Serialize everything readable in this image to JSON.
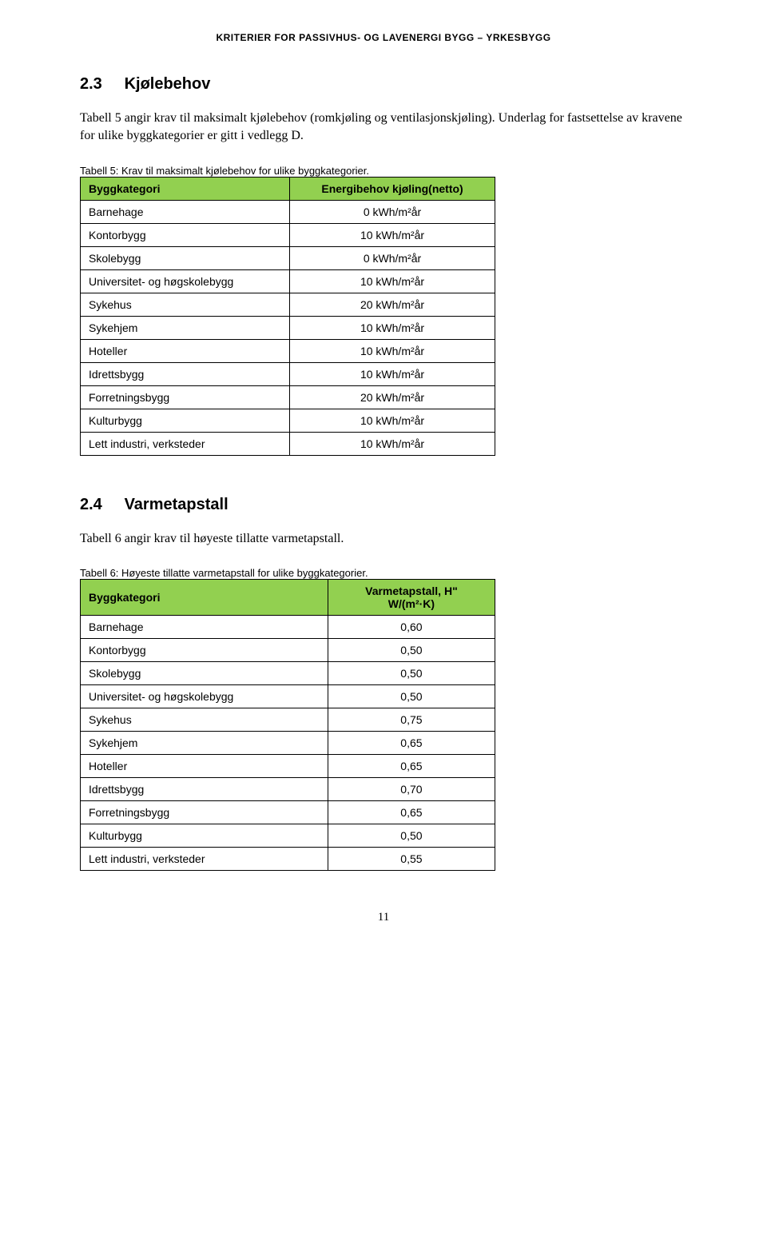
{
  "header": {
    "text": "KRITERIER FOR PASSIVHUS- OG LAVENERGI BYGG – YRKESBYGG"
  },
  "section1": {
    "number": "2.3",
    "title": "Kjølebehov",
    "body": "Tabell 5 angir krav til maksimalt kjølebehov (romkjøling og ventilasjonskjøling). Underlag for fastsettelse av kravene for ulike byggkategorier er gitt i vedlegg D."
  },
  "table5": {
    "caption": "Tabell 5: Krav til maksimalt kjølebehov for ulike byggkategorier.",
    "header_col1": "Byggkategori",
    "header_col2": "Energibehov kjøling(netto)",
    "header_bg": "#92d050",
    "rows": [
      {
        "name": "Barnehage",
        "value": "0 kWh/m²år"
      },
      {
        "name": "Kontorbygg",
        "value": "10 kWh/m²år"
      },
      {
        "name": "Skolebygg",
        "value": "0 kWh/m²år"
      },
      {
        "name": "Universitet- og høgskolebygg",
        "value": "10 kWh/m²år"
      },
      {
        "name": "Sykehus",
        "value": "20 kWh/m²år"
      },
      {
        "name": "Sykehjem",
        "value": "10 kWh/m²år"
      },
      {
        "name": "Hoteller",
        "value": "10 kWh/m²år"
      },
      {
        "name": "Idrettsbygg",
        "value": "10 kWh/m²år"
      },
      {
        "name": "Forretningsbygg",
        "value": "20 kWh/m²år"
      },
      {
        "name": "Kulturbygg",
        "value": "10 kWh/m²år"
      },
      {
        "name": "Lett industri, verksteder",
        "value": "10 kWh/m²år"
      }
    ]
  },
  "section2": {
    "number": "2.4",
    "title": "Varmetapstall",
    "body": "Tabell 6 angir krav til høyeste tillatte varmetapstall."
  },
  "table6": {
    "caption": "Tabell 6: Høyeste tillatte varmetapstall for ulike byggkategorier.",
    "header_col1": "Byggkategori",
    "header_col2_line1": "Varmetapstall, H\"",
    "header_col2_line2": "W/(m²·K)",
    "header_bg": "#92d050",
    "rows": [
      {
        "name": "Barnehage",
        "value": "0,60"
      },
      {
        "name": "Kontorbygg",
        "value": "0,50"
      },
      {
        "name": "Skolebygg",
        "value": "0,50"
      },
      {
        "name": "Universitet- og høgskolebygg",
        "value": "0,50"
      },
      {
        "name": "Sykehus",
        "value": "0,75"
      },
      {
        "name": "Sykehjem",
        "value": "0,65"
      },
      {
        "name": "Hoteller",
        "value": "0,65"
      },
      {
        "name": "Idrettsbygg",
        "value": "0,70"
      },
      {
        "name": "Forretningsbygg",
        "value": "0,65"
      },
      {
        "name": "Kulturbygg",
        "value": "0,50"
      },
      {
        "name": "Lett industri, verksteder",
        "value": "0,55"
      }
    ]
  },
  "page_number": "11"
}
